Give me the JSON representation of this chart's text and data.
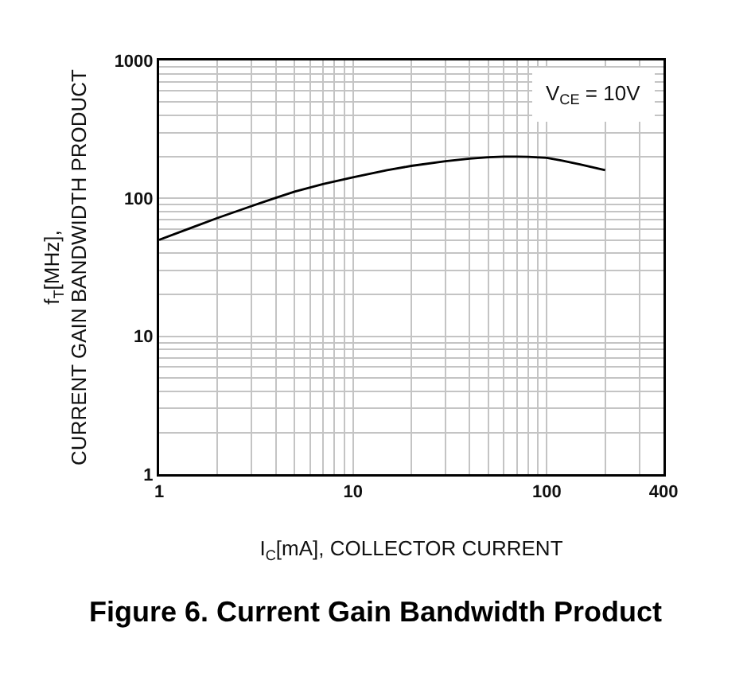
{
  "chart_data": {
    "type": "line",
    "title": "Figure 6. Current Gain Bandwidth Product",
    "xlabel": "I$_{C}$[mA], COLLECTOR CURRENT",
    "ylabel": "f$_{T}$[MHz],\nCURRENT GAIN BANDWIDTH PRODUCT",
    "annotations": [
      "V$_{CE}$ = 10V"
    ],
    "x": [
      1,
      1.5,
      2,
      3,
      4,
      5,
      7,
      10,
      15,
      20,
      30,
      40,
      50,
      60,
      70,
      80,
      100,
      120,
      150,
      200
    ],
    "series": [
      {
        "color": "#000000",
        "values": [
          50,
          62,
          72,
          88,
          101,
          112,
          127,
          142,
          160,
          172,
          186,
          194,
          199,
          201,
          201,
          200,
          197,
          188,
          176,
          160
        ]
      }
    ],
    "log": "xy",
    "xlim": [
      1,
      400
    ],
    "ylim": [
      1,
      1000
    ],
    "xticks": [
      1,
      {
        "value": 2,
        "label": null
      },
      {
        "value": 3,
        "label": null
      },
      {
        "value": 4,
        "label": null
      },
      {
        "value": 5,
        "label": null
      },
      {
        "value": 6,
        "label": null
      },
      {
        "value": 7,
        "label": null
      },
      {
        "value": 8,
        "label": null
      },
      {
        "value": 9,
        "label": null
      },
      10,
      {
        "value": 20,
        "label": null
      },
      {
        "value": 30,
        "label": null
      },
      {
        "value": 40,
        "label": null
      },
      {
        "value": 50,
        "label": null
      },
      {
        "value": 60,
        "label": null
      },
      {
        "value": 70,
        "label": null
      },
      {
        "value": 80,
        "label": null
      },
      {
        "value": 90,
        "label": null
      },
      100,
      {
        "value": 200,
        "label": null
      },
      {
        "value": 300,
        "label": null
      },
      400
    ],
    "yticks": [
      1,
      {
        "value": 2,
        "label": null
      },
      {
        "value": 3,
        "label": null
      },
      {
        "value": 4,
        "label": null
      },
      {
        "value": 5,
        "label": null
      },
      {
        "value": 6,
        "label": null
      },
      {
        "value": 7,
        "label": null
      },
      {
        "value": 8,
        "label": null
      },
      {
        "value": 9,
        "label": null
      },
      10,
      {
        "value": 20,
        "label": null
      },
      {
        "value": 30,
        "label": null
      },
      {
        "value": 40,
        "label": null
      },
      {
        "value": 50,
        "label": null
      },
      {
        "value": 60,
        "label": null
      },
      {
        "value": 70,
        "label": null
      },
      {
        "value": 80,
        "label": null
      },
      {
        "value": 90,
        "label": null
      },
      100,
      {
        "value": 200,
        "label": null
      },
      {
        "value": 300,
        "label": null
      },
      {
        "value": 400,
        "label": null
      },
      {
        "value": 500,
        "label": null
      },
      {
        "value": 600,
        "label": null
      },
      {
        "value": 700,
        "label": null
      },
      {
        "value": 800,
        "label": null
      },
      {
        "value": 900,
        "label": null
      },
      1000
    ],
    "grid": true,
    "line_style": "solid"
  }
}
